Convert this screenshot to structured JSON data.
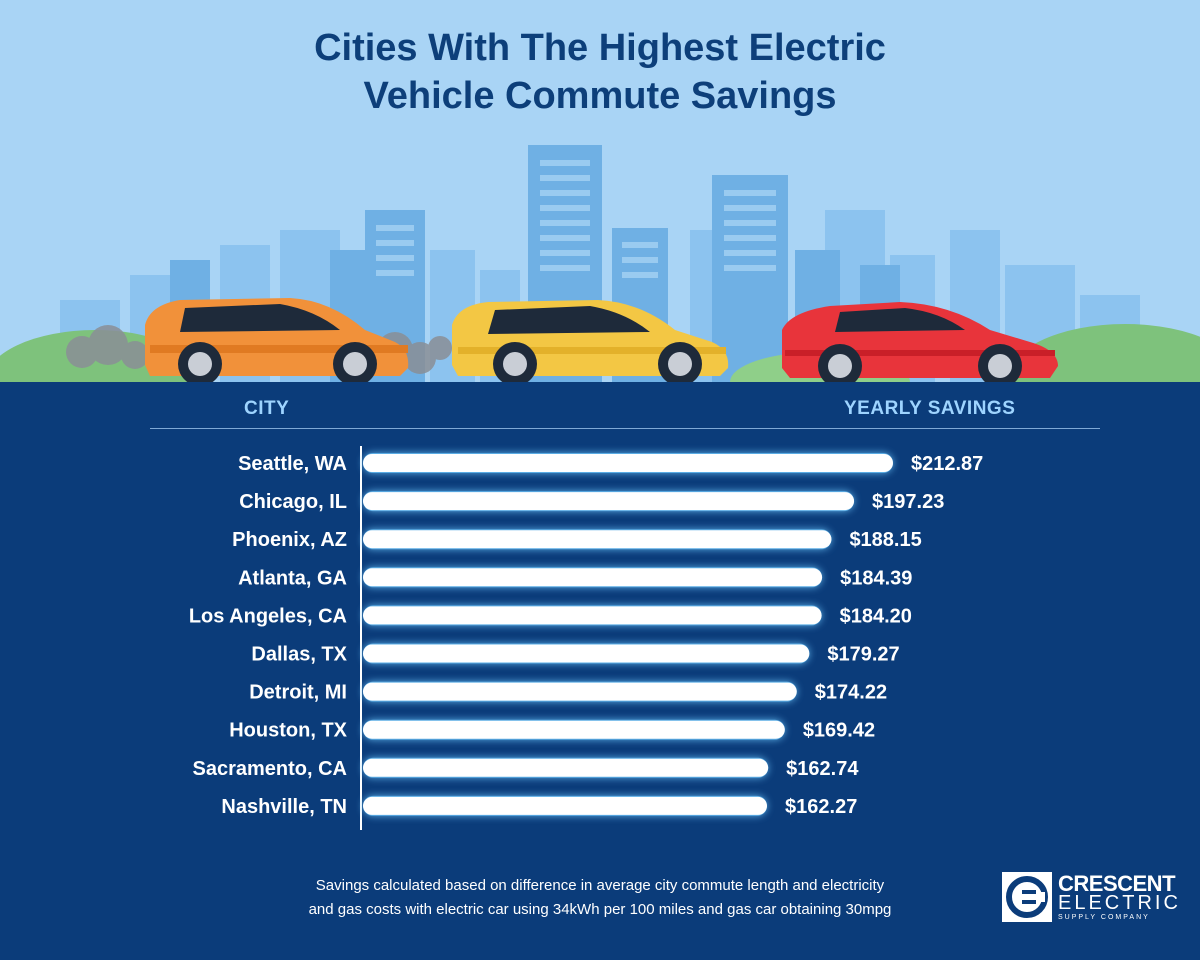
{
  "title_lines": [
    "Cities With The Highest Electric",
    "Vehicle Commute Savings"
  ],
  "headers": {
    "city": "CITY",
    "savings": "YEARLY SAVINGS"
  },
  "chart_data": {
    "type": "bar",
    "orientation": "horizontal",
    "title": "Cities With The Highest Electric Vehicle Commute Savings",
    "xlabel": "YEARLY SAVINGS",
    "ylabel": "CITY",
    "categories": [
      "Seattle, WA",
      "Chicago, IL",
      "Phoenix, AZ",
      "Atlanta, GA",
      "Los Angeles, CA",
      "Dallas, TX",
      "Detroit, MI",
      "Houston, TX",
      "Sacramento, CA",
      "Nashville, TN"
    ],
    "values": [
      212.87,
      197.23,
      188.15,
      184.39,
      184.2,
      179.27,
      174.22,
      169.42,
      162.74,
      162.27
    ],
    "value_labels": [
      "$212.87",
      "$197.23",
      "$188.15",
      "$184.39",
      "$184.20",
      "$179.27",
      "$174.22",
      "$169.42",
      "$162.74",
      "$162.27"
    ],
    "xlim": [
      0,
      212.87
    ],
    "grid": false,
    "bar_color": "#ffffff",
    "glow_color": "#6ec8ff"
  },
  "footnote_lines": [
    "Savings calculated based on difference in average city commute length and electricity",
    "and gas costs with electric car using 34kWh per 100 miles and gas car obtaining 30mpg"
  ],
  "logo": {
    "name": "CRESCENT",
    "sub": "ELECTRIC",
    "tag": "SUPPLY COMPANY"
  },
  "colors": {
    "sky": "#a9d4f5",
    "navy": "#0b3c7a",
    "title": "#0d3f7a",
    "header": "#9ed4ff"
  },
  "illustration": {
    "cars": [
      "orange-car",
      "yellow-car",
      "red-car"
    ]
  }
}
